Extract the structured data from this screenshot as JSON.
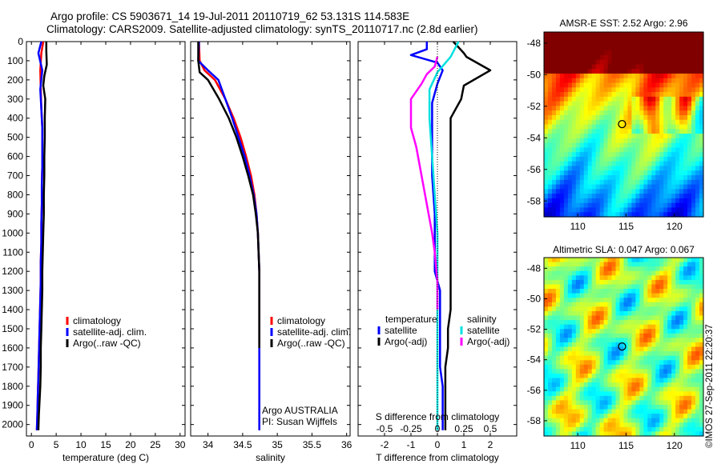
{
  "figure": {
    "title_line1": "Argo profile: CS 5903671_14 19-Jul-2011 20110719_62 53.131S 114.583E",
    "title_line2": "Climatology: CARS2009. Satellite-adjusted climatology: synTS_20110717.nc (2.8d earlier)",
    "timestamp": "©IMOS 27-Sep-2011 22:20:37"
  },
  "colors": {
    "climatology": "#ff0000",
    "satellite": "#0000ff",
    "argo": "#000000",
    "salinity_satellite": "#00e0e0",
    "salinity_argo": "#ff00ff"
  },
  "chart_data": [
    {
      "type": "line",
      "xlabel": "temperature (deg C)",
      "ylabel": "",
      "xlim": [
        -1,
        31
      ],
      "ylim": [
        2060,
        0
      ],
      "xticks": [
        0,
        5,
        10,
        15,
        20,
        25,
        30
      ],
      "yticks": [
        0,
        100,
        200,
        300,
        400,
        500,
        600,
        700,
        800,
        900,
        1000,
        1100,
        1200,
        1300,
        1400,
        1500,
        1600,
        1700,
        1800,
        1900,
        2000
      ],
      "legend": [
        "climatology",
        "satellite-adj. clim.",
        "Argo(..raw -QC)"
      ],
      "legend_position": "lower-right",
      "series": [
        {
          "name": "climatology",
          "color_key": "climatology",
          "x": [
            2.4,
            2.0,
            1.8,
            1.9,
            2.0,
            2.2,
            2.2,
            2.2,
            2.1,
            2.1,
            2.0,
            2.0,
            1.9,
            1.9,
            1.8,
            1.7,
            1.6,
            1.5,
            1.4,
            1.3,
            1.2,
            1.1
          ],
          "y": [
            0,
            60,
            150,
            250,
            350,
            450,
            550,
            650,
            750,
            850,
            950,
            1050,
            1150,
            1250,
            1350,
            1450,
            1550,
            1650,
            1750,
            1850,
            1950,
            2030
          ]
        },
        {
          "name": "satellite-adj. clim.",
          "color_key": "satellite",
          "x": [
            2.0,
            1.4,
            2.2,
            1.8,
            2.0,
            2.2,
            2.2,
            2.2,
            2.1,
            2.1,
            2.0,
            2.0,
            1.9,
            1.9,
            1.8,
            1.7,
            1.6,
            1.5,
            1.4,
            1.3,
            1.2,
            1.1
          ],
          "y": [
            0,
            60,
            150,
            250,
            350,
            450,
            550,
            650,
            750,
            850,
            950,
            1050,
            1150,
            1250,
            1350,
            1450,
            1550,
            1650,
            1750,
            1850,
            1950,
            2030
          ]
        },
        {
          "name": "Argo(..raw -QC)",
          "color_key": "argo",
          "x": [
            3.0,
            3.0,
            3.1,
            2.6,
            2.4,
            2.8,
            2.7,
            2.7,
            2.6,
            2.6,
            2.5,
            2.5,
            2.4,
            2.3,
            2.2,
            2.2,
            2.1,
            2.0,
            1.9,
            1.9,
            1.8,
            1.7,
            1.6,
            1.5,
            1.4
          ],
          "y": [
            0,
            50,
            120,
            180,
            230,
            300,
            400,
            500,
            600,
            700,
            800,
            900,
            1000,
            1100,
            1200,
            1300,
            1400,
            1500,
            1600,
            1700,
            1800,
            1850,
            1900,
            1950,
            2030
          ]
        }
      ]
    },
    {
      "type": "line",
      "xlabel": "salinity",
      "ylabel": "",
      "xlim": [
        33.75,
        36.05
      ],
      "ylim": [
        2060,
        0
      ],
      "xticks": [
        34,
        34.5,
        35,
        35.5,
        36
      ],
      "legend": [
        "climatology",
        "satellite-adj. clim.",
        "Argo(..raw -QC)"
      ],
      "legend_position": "lower-right",
      "annotation_line1": "Argo AUSTRALIA",
      "annotation_line2": "PI: Susan Wijffels",
      "series": [
        {
          "name": "climatology",
          "color_key": "climatology",
          "x": [
            33.87,
            33.88,
            33.95,
            34.1,
            34.25,
            34.37,
            34.47,
            34.55,
            34.62,
            34.67,
            34.7,
            34.72,
            34.73,
            34.74,
            34.74,
            34.74,
            34.74,
            34.74,
            34.74,
            34.74,
            34.74
          ],
          "y": [
            0,
            100,
            150,
            200,
            300,
            400,
            500,
            600,
            700,
            800,
            900,
            1000,
            1100,
            1200,
            1300,
            1400,
            1500,
            1600,
            1800,
            1900,
            2030
          ]
        },
        {
          "name": "satellite-adj. clim.",
          "color_key": "satellite",
          "x": [
            33.87,
            33.86,
            34.0,
            34.15,
            34.25,
            34.35,
            34.44,
            34.53,
            34.6,
            34.66,
            34.7,
            34.72,
            34.73,
            34.74,
            34.74,
            34.74,
            34.74,
            34.74,
            34.74,
            34.74,
            34.74
          ],
          "y": [
            0,
            100,
            150,
            200,
            300,
            400,
            500,
            600,
            700,
            800,
            900,
            1000,
            1100,
            1200,
            1300,
            1400,
            1500,
            1600,
            1800,
            1900,
            2030
          ]
        },
        {
          "name": "Argo(..raw -QC)",
          "color_key": "argo",
          "x": [
            33.86,
            33.86,
            33.88,
            34.0,
            34.16,
            34.3,
            34.41,
            34.5,
            34.58,
            34.65,
            34.69,
            34.72,
            34.73,
            34.74,
            34.74,
            34.74,
            34.74,
            34.74
          ],
          "y": [
            0,
            100,
            160,
            200,
            300,
            400,
            500,
            600,
            700,
            800,
            900,
            1000,
            1100,
            1200,
            1300,
            1400,
            1500,
            1600
          ]
        }
      ]
    },
    {
      "type": "line",
      "xlabel": "T difference from climatology",
      "xlabel_top": "S difference from climatology",
      "ylabel": "",
      "xlim": [
        -3,
        3
      ],
      "ylim": [
        2060,
        0
      ],
      "xticks": [
        -2,
        -1,
        0,
        1,
        2
      ],
      "xticks_top": [
        "-0.5",
        "-0.25",
        "0",
        "0.25",
        "0.5"
      ],
      "legend_temperature_title": "temperature",
      "legend_salinity_title": "salinity",
      "legend_temperature": [
        "satellite",
        "Argo(-adj)"
      ],
      "legend_salinity": [
        "satellite",
        "Argo(-adj)"
      ],
      "series": [
        {
          "name": "temperature satellite",
          "color_key": "satellite",
          "x": [
            -0.4,
            -0.4,
            -1.0,
            0.0,
            0.2,
            0.0,
            -0.2,
            -0.2,
            -0.2,
            -0.1,
            -0.1,
            -0.1,
            0.1,
            0.1,
            0.1,
            0.1,
            0.1,
            0.2,
            0.2,
            0.2,
            0.2
          ],
          "y": [
            0,
            40,
            70,
            110,
            150,
            220,
            320,
            500,
            700,
            900,
            1100,
            1200,
            1300,
            1400,
            1500,
            1600,
            1700,
            1800,
            1900,
            1980,
            2030
          ]
        },
        {
          "name": "temperature Argo(-adj)",
          "color_key": "argo",
          "x": [
            0.6,
            1.0,
            1.1,
            2.0,
            1.0,
            0.9,
            0.5,
            0.5,
            0.5,
            0.5,
            0.5,
            0.5,
            0.5,
            0.4,
            0.4,
            0.3,
            0.3,
            0.3,
            0.3,
            0.3,
            0.3
          ],
          "y": [
            0,
            60,
            80,
            150,
            230,
            300,
            400,
            600,
            800,
            1000,
            1200,
            1300,
            1400,
            1500,
            1600,
            1700,
            1800,
            1850,
            1900,
            1950,
            2030
          ]
        },
        {
          "name": "salinity satellite",
          "color_key": "salinity_satellite",
          "x": [
            0.8,
            0.5,
            0.0,
            -0.3,
            -0.3,
            -0.2,
            -0.1,
            0.0,
            0.0,
            0.0,
            0.0,
            0.0,
            0.0,
            0.0,
            0.0,
            0.0
          ],
          "y": [
            0,
            80,
            160,
            250,
            400,
            600,
            800,
            1000,
            1200,
            1400,
            1500,
            1600,
            1700,
            1800,
            1900,
            2030
          ]
        },
        {
          "name": "salinity Argo(-adj)",
          "color_key": "salinity_argo",
          "x": [
            0.0,
            -0.1,
            -0.4,
            -0.6,
            -1.0,
            -1.0,
            -0.8,
            -0.6,
            -0.4,
            -0.2,
            -0.1,
            0.0,
            0.0
          ],
          "y": [
            80,
            130,
            170,
            220,
            300,
            450,
            550,
            700,
            850,
            1000,
            1100,
            1250,
            1400
          ]
        }
      ]
    },
    {
      "type": "heatmap",
      "title": "AMSR-E SST: 2.52 Argo: 2.96",
      "xlim": [
        106.5,
        123
      ],
      "ylim": [
        -59,
        -47.3
      ],
      "xticks": [
        110,
        115,
        120
      ],
      "yticks": [
        -48,
        -50,
        -52,
        -54,
        -56,
        -58
      ],
      "marker": {
        "lon": 114.583,
        "lat": -53.131
      }
    },
    {
      "type": "heatmap",
      "title": "Altimetric SLA: 0.047 Argo: 0.067",
      "xlim": [
        106.5,
        123
      ],
      "ylim": [
        -59,
        -47.3
      ],
      "xticks": [
        110,
        115,
        120
      ],
      "yticks": [
        -48,
        -50,
        -52,
        -54,
        -56,
        -58
      ],
      "marker": {
        "lon": 114.583,
        "lat": -53.131
      }
    }
  ]
}
